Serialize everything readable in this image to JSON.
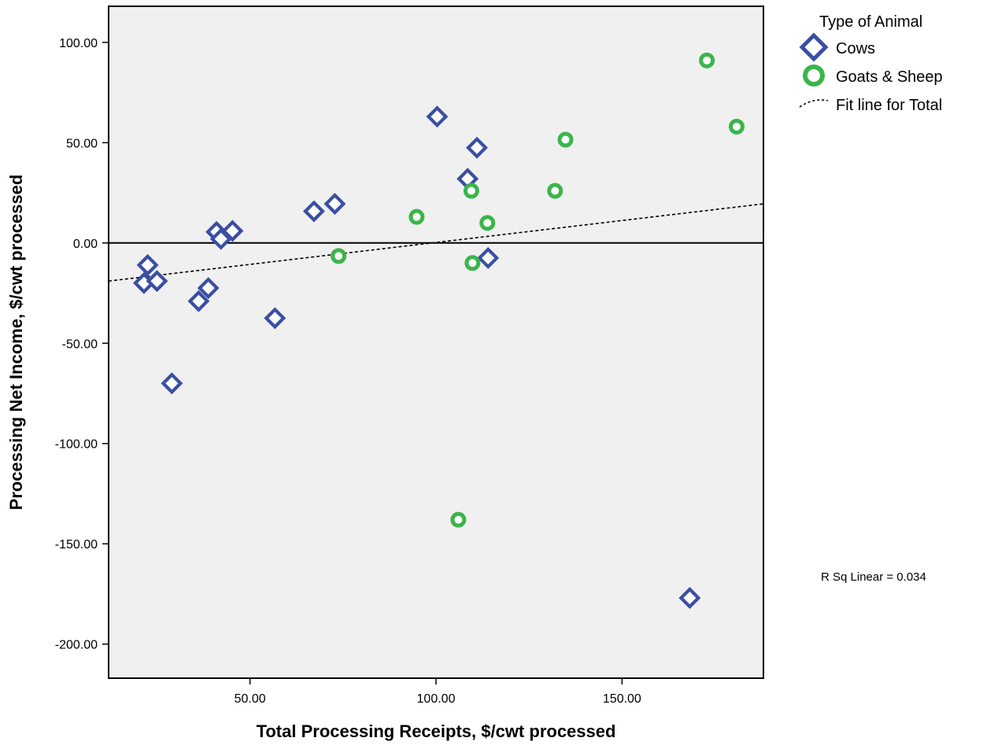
{
  "chart_data": {
    "type": "scatter",
    "xlabel": "Total Processing Receipts, $/cwt processed",
    "ylabel": "Processing Net Income, $/cwt processed",
    "xlim": [
      12,
      188
    ],
    "ylim": [
      -217,
      118
    ],
    "x_ticks": [
      {
        "value": 50,
        "label": "50.00"
      },
      {
        "value": 100,
        "label": "100.00"
      },
      {
        "value": 150,
        "label": "150.00"
      }
    ],
    "y_ticks": [
      {
        "value": 100,
        "label": "100.00"
      },
      {
        "value": 50,
        "label": "50.00"
      },
      {
        "value": 0,
        "label": "0.00"
      },
      {
        "value": -50,
        "label": "-50.00"
      },
      {
        "value": -100,
        "label": "-100.00"
      },
      {
        "value": -150,
        "label": "-150.00"
      },
      {
        "value": -200,
        "label": "-200.00"
      }
    ],
    "reference_line_y": 0,
    "grid": false,
    "legend": {
      "title": "Type of Animal",
      "position": "top-right",
      "entries": [
        "Cows",
        "Goats & Sheep",
        "Fit line for Total"
      ]
    },
    "series": [
      {
        "name": "Cows",
        "marker": "diamond",
        "color": "#3a4fa3",
        "points": [
          [
            100.3,
            63
          ],
          [
            111,
            47.5
          ],
          [
            108.5,
            32
          ],
          [
            72.8,
            19.5
          ],
          [
            67.2,
            15.8
          ],
          [
            41,
            5.5
          ],
          [
            45.3,
            6
          ],
          [
            42.2,
            2
          ],
          [
            114,
            -7.5
          ],
          [
            22.5,
            -11
          ],
          [
            21.5,
            -20
          ],
          [
            25,
            -19
          ],
          [
            38.8,
            -22.5
          ],
          [
            36.2,
            -29
          ],
          [
            56.7,
            -37.5
          ],
          [
            29,
            -70
          ],
          [
            168.2,
            -177
          ]
        ]
      },
      {
        "name": "Goats & Sheep",
        "marker": "circle",
        "color": "#3bb54a",
        "points": [
          [
            172.8,
            91
          ],
          [
            180.8,
            58
          ],
          [
            134.8,
            51.5
          ],
          [
            109.5,
            26
          ],
          [
            132,
            26
          ],
          [
            94.8,
            13
          ],
          [
            113.8,
            10
          ],
          [
            73.8,
            -6.5
          ],
          [
            109.8,
            -10
          ],
          [
            106,
            -138
          ]
        ]
      }
    ],
    "fit_line": {
      "name": "Fit line for Total",
      "style": "dashed",
      "color": "#000000",
      "x": [
        12,
        188
      ],
      "y": [
        -19,
        19.5
      ]
    },
    "annotations": [
      {
        "text": "R Sq Linear = 0.034"
      }
    ],
    "colors": {
      "plot_background": "#f0f0f0",
      "frame": "#000000"
    }
  }
}
